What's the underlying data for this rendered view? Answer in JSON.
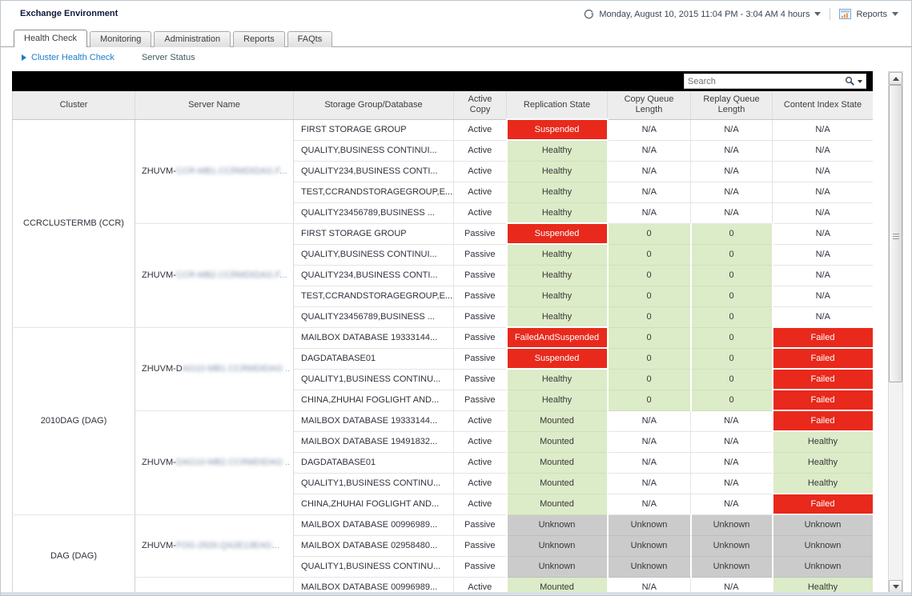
{
  "window": {
    "title": "Exchange Environment"
  },
  "toolbar": {
    "time_range": "Monday, August 10, 2015 11:04 PM - 3:04 AM 4 hours",
    "reports_label": "Reports"
  },
  "tabs": [
    {
      "label": "Health Check",
      "active": true
    },
    {
      "label": "Monitoring",
      "active": false
    },
    {
      "label": "Administration",
      "active": false
    },
    {
      "label": "Reports",
      "active": false
    },
    {
      "label": "FAQts",
      "active": false
    }
  ],
  "breadcrumb": {
    "primary": "Cluster Health Check",
    "secondary": "Server Status"
  },
  "search": {
    "placeholder": "Search"
  },
  "colors": {
    "red": "#e8291c",
    "green": "#dcebc8",
    "gray": "#cbcbcb",
    "white": "#ffffff",
    "link_blue": "#1a7ec8"
  },
  "table": {
    "columns": [
      "Cluster",
      "Server Name",
      "Storage Group/Database",
      "Active Copy",
      "Replication State",
      "Copy Queue Length",
      "Replay Queue Length",
      "Content Index State"
    ],
    "clusters": [
      {
        "name": "CCRCLUSTERMB (CCR)",
        "servers": [
          {
            "name_visible": "ZHUVM-",
            "name_redacted": "CCR-MB1.CCRMDIDAG.F",
            "name_ellipsis": "...",
            "rows": [
              {
                "storage": "FIRST STORAGE GROUP",
                "copy": "Active",
                "replication": {
                  "v": "Suspended",
                  "s": "red"
                },
                "copy_queue": {
                  "v": "N/A",
                  "s": "white"
                },
                "replay_queue": {
                  "v": "N/A",
                  "s": "white"
                },
                "content_index": {
                  "v": "N/A",
                  "s": "white"
                }
              },
              {
                "storage": "QUALITY,BUSINESS CONTINUI...",
                "copy": "Active",
                "replication": {
                  "v": "Healthy",
                  "s": "green"
                },
                "copy_queue": {
                  "v": "N/A",
                  "s": "white"
                },
                "replay_queue": {
                  "v": "N/A",
                  "s": "white"
                },
                "content_index": {
                  "v": "N/A",
                  "s": "white"
                }
              },
              {
                "storage": "QUALITY234,BUSINESS CONTI...",
                "copy": "Active",
                "replication": {
                  "v": "Healthy",
                  "s": "green"
                },
                "copy_queue": {
                  "v": "N/A",
                  "s": "white"
                },
                "replay_queue": {
                  "v": "N/A",
                  "s": "white"
                },
                "content_index": {
                  "v": "N/A",
                  "s": "white"
                }
              },
              {
                "storage": "TEST,CCRANDSTORAGEGROUP,E...",
                "copy": "Active",
                "replication": {
                  "v": "Healthy",
                  "s": "green"
                },
                "copy_queue": {
                  "v": "N/A",
                  "s": "white"
                },
                "replay_queue": {
                  "v": "N/A",
                  "s": "white"
                },
                "content_index": {
                  "v": "N/A",
                  "s": "white"
                }
              },
              {
                "storage": "QUALITY23456789,BUSINESS ...",
                "copy": "Active",
                "replication": {
                  "v": "Healthy",
                  "s": "green"
                },
                "copy_queue": {
                  "v": "N/A",
                  "s": "white"
                },
                "replay_queue": {
                  "v": "N/A",
                  "s": "white"
                },
                "content_index": {
                  "v": "N/A",
                  "s": "white"
                }
              }
            ]
          },
          {
            "name_visible": "ZHUVM-",
            "name_redacted": "CCR-MB2.CCRMDIDAG.F",
            "name_ellipsis": "...",
            "rows": [
              {
                "storage": "FIRST STORAGE GROUP",
                "copy": "Passive",
                "replication": {
                  "v": "Suspended",
                  "s": "red"
                },
                "copy_queue": {
                  "v": "0",
                  "s": "green"
                },
                "replay_queue": {
                  "v": "0",
                  "s": "green"
                },
                "content_index": {
                  "v": "N/A",
                  "s": "white"
                }
              },
              {
                "storage": "QUALITY,BUSINESS CONTINUI...",
                "copy": "Passive",
                "replication": {
                  "v": "Healthy",
                  "s": "green"
                },
                "copy_queue": {
                  "v": "0",
                  "s": "green"
                },
                "replay_queue": {
                  "v": "0",
                  "s": "green"
                },
                "content_index": {
                  "v": "N/A",
                  "s": "white"
                }
              },
              {
                "storage": "QUALITY234,BUSINESS CONTI...",
                "copy": "Passive",
                "replication": {
                  "v": "Healthy",
                  "s": "green"
                },
                "copy_queue": {
                  "v": "0",
                  "s": "green"
                },
                "replay_queue": {
                  "v": "0",
                  "s": "green"
                },
                "content_index": {
                  "v": "N/A",
                  "s": "white"
                }
              },
              {
                "storage": "TEST,CCRANDSTORAGEGROUP,E...",
                "copy": "Passive",
                "replication": {
                  "v": "Healthy",
                  "s": "green"
                },
                "copy_queue": {
                  "v": "0",
                  "s": "green"
                },
                "replay_queue": {
                  "v": "0",
                  "s": "green"
                },
                "content_index": {
                  "v": "N/A",
                  "s": "white"
                }
              },
              {
                "storage": "QUALITY23456789,BUSINESS ...",
                "copy": "Passive",
                "replication": {
                  "v": "Healthy",
                  "s": "green"
                },
                "copy_queue": {
                  "v": "0",
                  "s": "green"
                },
                "replay_queue": {
                  "v": "0",
                  "s": "green"
                },
                "content_index": {
                  "v": "N/A",
                  "s": "white"
                }
              }
            ]
          }
        ]
      },
      {
        "name": "2010DAG (DAG)",
        "servers": [
          {
            "name_visible": "ZHUVM-D",
            "name_redacted": "AG10-MB1.CCRMDIDAG",
            "name_ellipsis": " ..",
            "rows": [
              {
                "storage": "MAILBOX DATABASE 19333144...",
                "copy": "Passive",
                "replication": {
                  "v": "FailedAndSuspended",
                  "s": "red"
                },
                "copy_queue": {
                  "v": "0",
                  "s": "green"
                },
                "replay_queue": {
                  "v": "0",
                  "s": "green"
                },
                "content_index": {
                  "v": "Failed",
                  "s": "red"
                }
              },
              {
                "storage": "DAGDATABASE01",
                "copy": "Passive",
                "replication": {
                  "v": "Suspended",
                  "s": "red"
                },
                "copy_queue": {
                  "v": "0",
                  "s": "green"
                },
                "replay_queue": {
                  "v": "0",
                  "s": "green"
                },
                "content_index": {
                  "v": "Failed",
                  "s": "red"
                }
              },
              {
                "storage": "QUALITY1,BUSINESS CONTINU...",
                "copy": "Passive",
                "replication": {
                  "v": "Healthy",
                  "s": "green"
                },
                "copy_queue": {
                  "v": "0",
                  "s": "green"
                },
                "replay_queue": {
                  "v": "0",
                  "s": "green"
                },
                "content_index": {
                  "v": "Failed",
                  "s": "red"
                }
              },
              {
                "storage": "CHINA,ZHUHAI FOGLIGHT AND...",
                "copy": "Passive",
                "replication": {
                  "v": "Healthy",
                  "s": "green"
                },
                "copy_queue": {
                  "v": "0",
                  "s": "green"
                },
                "replay_queue": {
                  "v": "0",
                  "s": "green"
                },
                "content_index": {
                  "v": "Failed",
                  "s": "red"
                }
              }
            ]
          },
          {
            "name_visible": "ZHUVM-",
            "name_redacted": "DAG10-MB2.CCRMDIDAG",
            "name_ellipsis": " ..",
            "rows": [
              {
                "storage": "MAILBOX DATABASE 19333144...",
                "copy": "Active",
                "replication": {
                  "v": "Mounted",
                  "s": "green"
                },
                "copy_queue": {
                  "v": "N/A",
                  "s": "white"
                },
                "replay_queue": {
                  "v": "N/A",
                  "s": "white"
                },
                "content_index": {
                  "v": "Failed",
                  "s": "red"
                }
              },
              {
                "storage": "MAILBOX DATABASE 19491832...",
                "copy": "Active",
                "replication": {
                  "v": "Mounted",
                  "s": "green"
                },
                "copy_queue": {
                  "v": "N/A",
                  "s": "white"
                },
                "replay_queue": {
                  "v": "N/A",
                  "s": "white"
                },
                "content_index": {
                  "v": "Healthy",
                  "s": "green"
                }
              },
              {
                "storage": "DAGDATABASE01",
                "copy": "Active",
                "replication": {
                  "v": "Mounted",
                  "s": "green"
                },
                "copy_queue": {
                  "v": "N/A",
                  "s": "white"
                },
                "replay_queue": {
                  "v": "N/A",
                  "s": "white"
                },
                "content_index": {
                  "v": "Healthy",
                  "s": "green"
                }
              },
              {
                "storage": "QUALITY1,BUSINESS CONTINU...",
                "copy": "Active",
                "replication": {
                  "v": "Mounted",
                  "s": "green"
                },
                "copy_queue": {
                  "v": "N/A",
                  "s": "white"
                },
                "replay_queue": {
                  "v": "N/A",
                  "s": "white"
                },
                "content_index": {
                  "v": "Healthy",
                  "s": "green"
                }
              },
              {
                "storage": "CHINA,ZHUHAI FOGLIGHT AND...",
                "copy": "Active",
                "replication": {
                  "v": "Mounted",
                  "s": "green"
                },
                "copy_queue": {
                  "v": "N/A",
                  "s": "white"
                },
                "replay_queue": {
                  "v": "N/A",
                  "s": "white"
                },
                "content_index": {
                  "v": "Failed",
                  "s": "red"
                }
              }
            ]
          }
        ]
      },
      {
        "name": "DAG (DAG)",
        "servers": [
          {
            "name_visible": "ZHUVM-",
            "name_redacted": "FOG-2926.QA2E13EAG",
            "name_ellipsis": "...",
            "rows": [
              {
                "storage": "MAILBOX DATABASE 00996989...",
                "copy": "Passive",
                "replication": {
                  "v": "Unknown",
                  "s": "gray"
                },
                "copy_queue": {
                  "v": "Unknown",
                  "s": "gray"
                },
                "replay_queue": {
                  "v": "Unknown",
                  "s": "gray"
                },
                "content_index": {
                  "v": "Unknown",
                  "s": "gray"
                }
              },
              {
                "storage": "MAILBOX DATABASE 02958480...",
                "copy": "Passive",
                "replication": {
                  "v": "Unknown",
                  "s": "gray"
                },
                "copy_queue": {
                  "v": "Unknown",
                  "s": "gray"
                },
                "replay_queue": {
                  "v": "Unknown",
                  "s": "gray"
                },
                "content_index": {
                  "v": "Unknown",
                  "s": "gray"
                }
              },
              {
                "storage": "QUALITY1,BUSINESS CONTINU...",
                "copy": "Passive",
                "replication": {
                  "v": "Unknown",
                  "s": "gray"
                },
                "copy_queue": {
                  "v": "Unknown",
                  "s": "gray"
                },
                "replay_queue": {
                  "v": "Unknown",
                  "s": "gray"
                },
                "content_index": {
                  "v": "Unknown",
                  "s": "gray"
                }
              }
            ]
          },
          {
            "name_visible": "",
            "name_redacted": "",
            "name_ellipsis": "",
            "rows": [
              {
                "storage": "MAILBOX DATABASE 00996989...",
                "copy": "Active",
                "replication": {
                  "v": "Mounted",
                  "s": "green"
                },
                "copy_queue": {
                  "v": "N/A",
                  "s": "white"
                },
                "replay_queue": {
                  "v": "N/A",
                  "s": "white"
                },
                "content_index": {
                  "v": "Healthy",
                  "s": "green"
                }
              }
            ]
          }
        ]
      }
    ]
  }
}
